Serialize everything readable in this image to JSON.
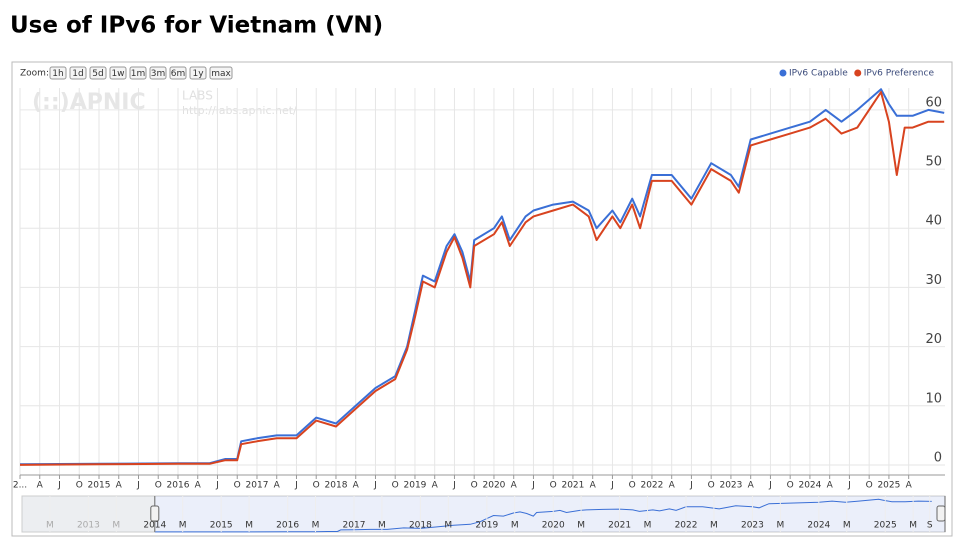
{
  "chart_data": {
    "type": "line",
    "title": "Use of IPv6 for Vietnam (VN)",
    "zoom": {
      "label": "Zoom:",
      "buttons": [
        "1h",
        "1d",
        "5d",
        "1w",
        "1m",
        "3m",
        "6m",
        "1y",
        "max"
      ]
    },
    "watermark": {
      "logo": "(::)APNIC",
      "labs": "LABS",
      "url": "http://labs.apnic.net/"
    },
    "x": [
      2014,
      2015,
      2016,
      2016.4,
      2016.6,
      2016.75,
      2016.8,
      2017,
      2017.25,
      2017.5,
      2017.75,
      2018,
      2018.25,
      2018.5,
      2018.75,
      2018.9,
      2019,
      2019.1,
      2019.25,
      2019.4,
      2019.5,
      2019.6,
      2019.7,
      2019.75,
      2020,
      2020.1,
      2020.2,
      2020.4,
      2020.5,
      2020.75,
      2021,
      2021.2,
      2021.3,
      2021.5,
      2021.6,
      2021.75,
      2021.85,
      2022,
      2022.25,
      2022.5,
      2022.75,
      2023,
      2023.1,
      2023.25,
      2023.5,
      2023.75,
      2024,
      2024.2,
      2024.4,
      2024.6,
      2024.9,
      2025,
      2025.1,
      2025.2,
      2025.3,
      2025.5,
      2025.7
    ],
    "series": [
      {
        "name": "IPv6 Capable",
        "color": "#3a6fd6",
        "values": [
          0.1,
          0.2,
          0.3,
          0.3,
          1,
          1,
          4,
          4.5,
          5,
          5,
          8,
          7,
          10,
          13,
          15,
          20,
          26,
          32,
          31,
          37,
          39,
          36,
          31,
          38,
          40,
          42,
          38,
          42,
          43,
          44,
          44.5,
          43,
          40,
          43,
          41,
          45,
          42,
          49,
          49,
          45,
          51,
          49,
          47,
          55,
          56,
          57,
          58,
          60,
          58,
          60,
          63.5,
          61,
          59,
          59,
          59,
          60,
          59.5
        ]
      },
      {
        "name": "IPv6 Preference",
        "color": "#d8431f",
        "values": [
          0,
          0.1,
          0.2,
          0.2,
          0.8,
          0.8,
          3.5,
          4,
          4.5,
          4.5,
          7.5,
          6.5,
          9.5,
          12.5,
          14.5,
          19.5,
          25,
          31,
          30,
          36,
          38.5,
          35,
          30,
          37,
          39,
          41,
          37,
          41,
          42,
          43,
          44,
          42,
          38,
          42,
          40,
          44,
          40,
          48,
          48,
          44,
          50,
          48,
          46,
          54,
          55,
          56,
          57,
          58.5,
          56,
          57,
          63,
          58,
          49,
          57,
          57,
          58,
          58
        ]
      }
    ],
    "xlim": [
      2014,
      2025.71
    ],
    "ylim": [
      -1.7,
      63.7
    ],
    "yticks": [
      0,
      10,
      20,
      30,
      40,
      50,
      60
    ],
    "xticks": [
      {
        "value": 2014,
        "label": "2..."
      },
      {
        "value": 2014.25,
        "label": "A"
      },
      {
        "value": 2014.5,
        "label": "J"
      },
      {
        "value": 2014.75,
        "label": "O"
      },
      2015,
      {
        "value": 2015.25,
        "label": "A"
      },
      {
        "value": 2015.5,
        "label": "J"
      },
      {
        "value": 2015.75,
        "label": "O"
      },
      2016,
      {
        "value": 2016.25,
        "label": "A"
      },
      {
        "value": 2016.5,
        "label": "J"
      },
      {
        "value": 2016.75,
        "label": "O"
      },
      2017,
      {
        "value": 2017.25,
        "label": "A"
      },
      {
        "value": 2017.5,
        "label": "J"
      },
      {
        "value": 2017.75,
        "label": "O"
      },
      2018,
      {
        "value": 2018.25,
        "label": "A"
      },
      {
        "value": 2018.5,
        "label": "J"
      },
      {
        "value": 2018.75,
        "label": "O"
      },
      2019,
      {
        "value": 2019.25,
        "label": "A"
      },
      {
        "value": 2019.5,
        "label": "J"
      },
      {
        "value": 2019.75,
        "label": "O"
      },
      2020,
      {
        "value": 2020.25,
        "label": "A"
      },
      {
        "value": 2020.5,
        "label": "J"
      },
      {
        "value": 2020.75,
        "label": "O"
      },
      2021,
      {
        "value": 2021.25,
        "label": "A"
      },
      {
        "value": 2021.5,
        "label": "J"
      },
      {
        "value": 2021.75,
        "label": "O"
      },
      2022,
      {
        "value": 2022.25,
        "label": "A"
      },
      {
        "value": 2022.5,
        "label": "J"
      },
      {
        "value": 2022.75,
        "label": "O"
      },
      2023,
      {
        "value": 2023.25,
        "label": "A"
      },
      {
        "value": 2023.5,
        "label": "J"
      },
      {
        "value": 2023.75,
        "label": "O"
      },
      2024,
      {
        "value": 2024.25,
        "label": "A"
      },
      {
        "value": 2024.5,
        "label": "J"
      },
      {
        "value": 2024.75,
        "label": "O"
      },
      2025,
      {
        "value": 2025.25,
        "label": "A"
      }
    ],
    "grid": true,
    "legend": "top-right",
    "navigator": {
      "xlim": [
        2012,
        2025.9
      ],
      "ylim": [
        0,
        70
      ],
      "selection": [
        2014,
        2025.9
      ],
      "xticks": [
        {
          "value": 2012.42,
          "label": "M"
        },
        2013,
        {
          "value": 2013.42,
          "label": "M"
        },
        2014,
        {
          "value": 2014.42,
          "label": "M"
        },
        2015,
        {
          "value": 2015.42,
          "label": "M"
        },
        2016,
        {
          "value": 2016.42,
          "label": "M"
        },
        2017,
        {
          "value": 2017.42,
          "label": "M"
        },
        2018,
        {
          "value": 2018.42,
          "label": "M"
        },
        2019,
        {
          "value": 2019.42,
          "label": "M"
        },
        2020,
        {
          "value": 2020.42,
          "label": "M"
        },
        2021,
        {
          "value": 2021.42,
          "label": "M"
        },
        2022,
        {
          "value": 2022.42,
          "label": "M"
        },
        2023,
        {
          "value": 2023.42,
          "label": "M"
        },
        2024,
        {
          "value": 2024.42,
          "label": "M"
        },
        2025,
        {
          "value": 2025.42,
          "label": "M"
        },
        {
          "value": 2025.67,
          "label": "S"
        }
      ]
    }
  }
}
